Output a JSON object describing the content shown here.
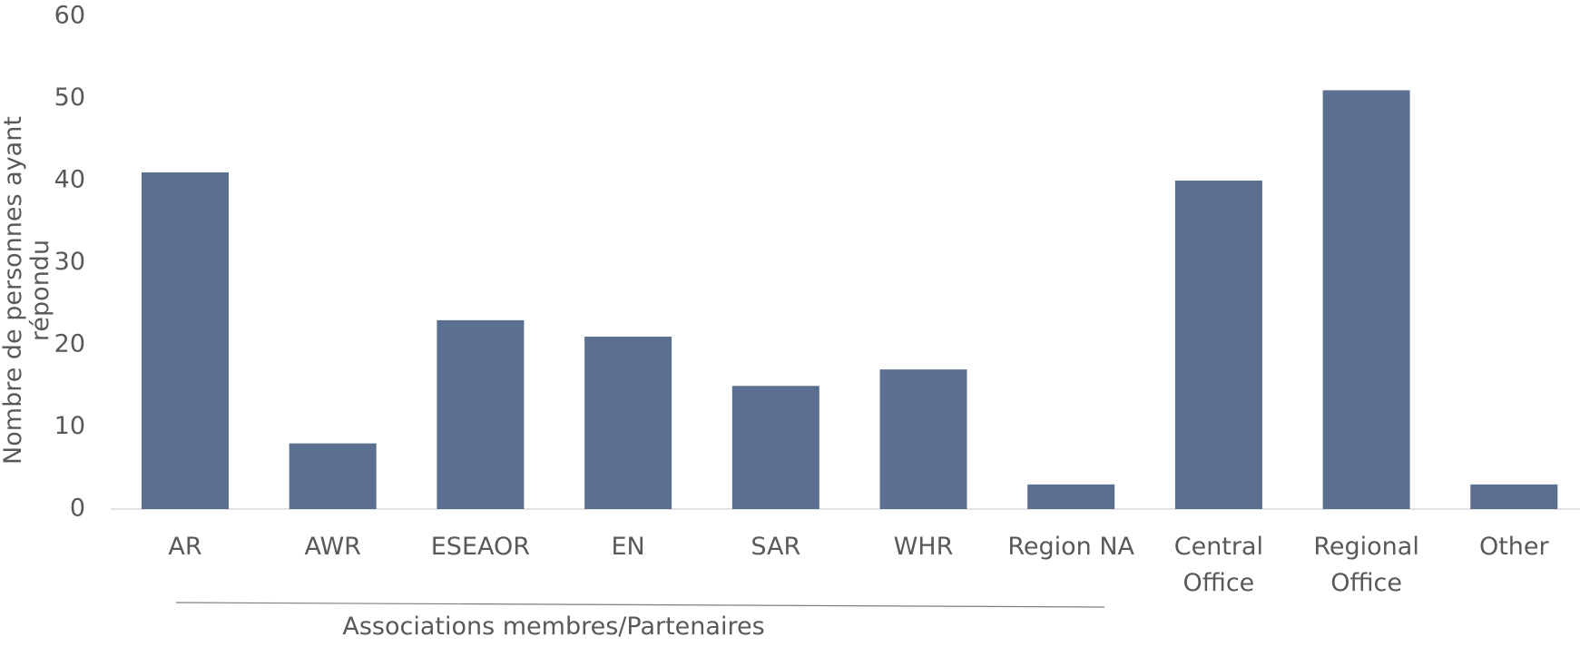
{
  "chart_data": {
    "type": "bar",
    "y_axis_label": "Nombre de personnes ayant répondu",
    "group_label": "Associations membres/Partenaires",
    "categories": [
      "AR",
      "AWR",
      "ESEAOR",
      "EN",
      "SAR",
      "WHR",
      "Region NA",
      "Central Office",
      "Regional Office",
      "Other"
    ],
    "values": [
      41,
      8,
      23,
      21,
      15,
      17,
      3,
      40,
      51,
      3
    ],
    "color": "#5b7090",
    "ylim": [
      0,
      60
    ],
    "yticks": [
      0,
      10,
      20,
      30,
      40,
      50,
      60
    ],
    "grid": false
  }
}
